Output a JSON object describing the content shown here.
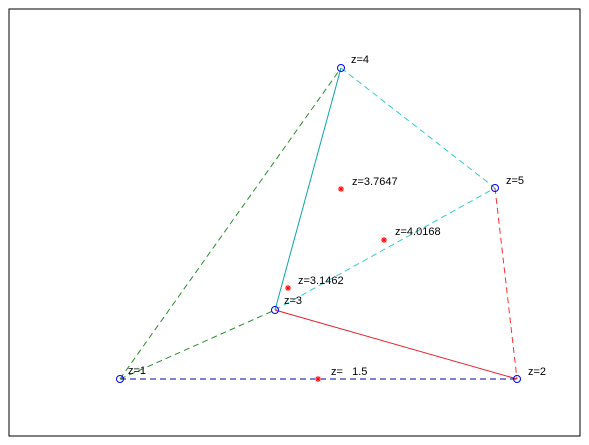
{
  "colors": {
    "background": "#ffffff",
    "frame": "#000000",
    "vertex_marker": "#0000ff",
    "centroid_marker": "#ff0000",
    "label": "#000000"
  },
  "icons": {
    "vertex": "circle-marker",
    "centroid": "asterisk-marker"
  },
  "vertices": [
    {
      "id": "1",
      "label": "z=1"
    },
    {
      "id": "2",
      "label": "z=2"
    },
    {
      "id": "3",
      "label": "z=3"
    },
    {
      "id": "4",
      "label": "z=4"
    },
    {
      "id": "5",
      "label": "z=5"
    }
  ],
  "edges": [
    {
      "from": "1",
      "to": "2",
      "color": "#0000aa",
      "style": "dashed"
    },
    {
      "from": "1",
      "to": "3",
      "color": "#2e8b2e",
      "style": "dashed"
    },
    {
      "from": "1",
      "to": "4",
      "color": "#2e8b2e",
      "style": "dashed"
    },
    {
      "from": "3",
      "to": "4",
      "color": "#0fa5a5",
      "style": "solid"
    },
    {
      "from": "3",
      "to": "5",
      "color": "#33cccc",
      "style": "dashed"
    },
    {
      "from": "4",
      "to": "5",
      "color": "#33cccc",
      "style": "dashed"
    },
    {
      "from": "3",
      "to": "2",
      "color": "#e8202a",
      "style": "solid"
    },
    {
      "from": "5",
      "to": "2",
      "color": "#ff3030",
      "style": "dashed"
    }
  ],
  "centroids": [
    {
      "id": "c12",
      "label": "z=   1.5"
    },
    {
      "id": "c134",
      "label": "z=3.1462"
    },
    {
      "id": "c345",
      "label": "z=3.7647"
    },
    {
      "id": "c235",
      "label": "z=4.0168"
    }
  ]
}
